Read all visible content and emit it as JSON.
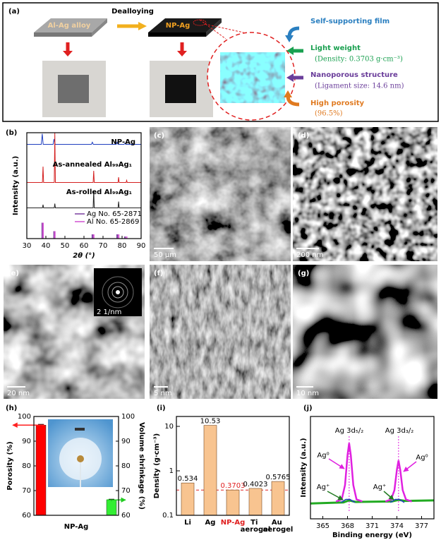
{
  "panel_a": {
    "label": "(a)",
    "process": "Dealloying",
    "alloy": "Al-Ag alloy",
    "product": "NP-Ag",
    "features": [
      {
        "title": "Self-supporting film"
      },
      {
        "title": "Light weight",
        "detail": "(Density: 0.3703 g·cm⁻³)"
      },
      {
        "title": "Nanoporous structure",
        "detail": "(Ligament size: 14.6 nm)"
      },
      {
        "title": "High porosity",
        "detail": "(96.5%)"
      }
    ]
  },
  "images": [
    {
      "label": "(c)",
      "scale_bar": "50 µm"
    },
    {
      "label": "(d)",
      "scale_bar": "200 nm"
    },
    {
      "label": "(e)",
      "scale_bar": "20 nm",
      "inset_scale_bar": "2 1/nm"
    },
    {
      "label": "(f)",
      "scale_bar": "5 nm"
    },
    {
      "label": "(g)",
      "scale_bar": "10 nm"
    }
  ],
  "chart_data": [
    {
      "label": "(b)",
      "type": "line",
      "x_label": "2θ (°)",
      "y_label": "Intensity (a.u.)",
      "xlim": [
        30,
        90
      ],
      "xticks": [
        30,
        40,
        50,
        60,
        70,
        80,
        90
      ],
      "ylim": [
        0,
        100
      ],
      "series": [
        {
          "name": "NP-Ag",
          "color": "#1f3fbf",
          "x": [
            30,
            37.6,
            38.1,
            38.6,
            43.8,
            44.3,
            44.8,
            63.9,
            64.4,
            64.9,
            76.9,
            77.4,
            77.9,
            81,
            81.5,
            82,
            90
          ],
          "values": [
            89,
            89,
            99,
            89,
            89,
            94,
            89,
            89,
            91,
            89,
            89,
            91,
            89,
            89,
            90,
            89,
            89
          ]
        },
        {
          "name": "As-annealed Al₉₉Ag₁",
          "color": "#d42020",
          "x": [
            30,
            38.2,
            38.5,
            38.8,
            44.4,
            44.7,
            45,
            64.8,
            65.1,
            65.4,
            77.9,
            78.2,
            78.5,
            82.1,
            82.4,
            82.7,
            90
          ],
          "values": [
            53,
            53,
            68,
            53,
            53,
            100,
            53,
            53,
            64,
            53,
            53,
            58,
            53,
            53,
            55,
            53,
            53
          ]
        },
        {
          "name": "As-rolled Al₉₉Ag₁",
          "color": "#222222",
          "x": [
            30,
            38.2,
            38.5,
            38.8,
            44.4,
            44.7,
            45,
            64.8,
            65.1,
            65.4,
            77.9,
            78.2,
            78.5,
            90
          ],
          "values": [
            29,
            29,
            32,
            29,
            29,
            33,
            29,
            29,
            45,
            29,
            29,
            35,
            29,
            29
          ]
        }
      ],
      "references": [
        {
          "name": "Ag No. 65-2871",
          "color": "#7a3fa0",
          "x": [
            38.1,
            44.3,
            64.4,
            77.4,
            81.5
          ],
          "values": [
            15,
            7,
            4,
            4,
            2
          ]
        },
        {
          "name": "Al No. 65-2869",
          "color": "#d050d0",
          "x": [
            38.5,
            44.7,
            65.1,
            78.2,
            82.4
          ],
          "values": [
            15,
            7,
            4,
            4,
            2
          ]
        }
      ]
    },
    {
      "label": "(h)",
      "type": "bar",
      "categories": [
        "NP-Ag"
      ],
      "y_label": "Porosity (%)",
      "y2_label": "Volume shrinkage (%)",
      "ylim": [
        60,
        100
      ],
      "yticks": [
        60,
        70,
        80,
        90,
        100
      ],
      "y2lim": [
        60,
        100
      ],
      "y2ticks": [
        60,
        70,
        80,
        90,
        100
      ],
      "series": [
        {
          "color": "#ff0000",
          "values": [
            96.5
          ],
          "errors": [
            0.3
          ]
        },
        {
          "color": "#33ee33",
          "values": [
            66.2
          ],
          "errors": [
            0.3
          ],
          "axis": "y2"
        }
      ]
    },
    {
      "label": "(i)",
      "type": "bar",
      "log_scale": true,
      "y_label": "Density (g·cm⁻³)",
      "ylim": [
        0.1,
        16.7
      ],
      "yticks": [
        0.1,
        1,
        10
      ],
      "categories": [
        "Li",
        "Ag",
        "NP-Ag",
        "Ti aerogel",
        "Au aerogel"
      ],
      "values": [
        0.534,
        10.53,
        0.3703,
        0.4023,
        0.5765
      ],
      "color": "#f8c490",
      "highlight_index": 2,
      "highlight_color": "#e02020"
    },
    {
      "label": "(j)",
      "type": "line",
      "x_label": "Binding energy (eV)",
      "y_label": "Intensity (a.u.)",
      "xlim": [
        363.5,
        378.5
      ],
      "xticks": [
        365,
        368,
        371,
        374,
        377
      ],
      "ylim": [
        0,
        100
      ],
      "reference_lines": [
        368.2,
        374.2
      ],
      "series": [
        {
          "color": "#22aa22",
          "x": [
            363.5,
            367.5,
            368.2,
            369,
            373.4,
            374.2,
            375,
            378.5
          ],
          "values": [
            15,
            16,
            18,
            16.5,
            17,
            18.5,
            17.5,
            18
          ]
        },
        {
          "color": "#e020e0",
          "x": [
            366.6,
            367.3,
            367.7,
            368.0,
            368.2,
            368.4,
            368.7,
            369.1,
            369.8,
            371,
            372.6,
            373.3,
            373.7,
            374.0,
            374.2,
            374.4,
            374.7,
            375.1,
            375.8
          ],
          "values": [
            17,
            19,
            33,
            62,
            74,
            62,
            33,
            19,
            17,
            null,
            17,
            19,
            28,
            48,
            57,
            48,
            28,
            19,
            17
          ]
        },
        {
          "color": "#2040c0",
          "x": [
            367.2,
            367.8,
            368.3,
            368.9,
            371,
            373.2,
            373.8,
            374.3,
            374.9
          ],
          "values": [
            16,
            19,
            19,
            16,
            null,
            16,
            19,
            19,
            16
          ]
        }
      ],
      "annotations": [
        "Ag 3d₅/₂",
        "Ag 3d₃/₂",
        "Ag⁰",
        "Ag⁰",
        "Ag⁺",
        "Ag⁺"
      ]
    }
  ]
}
